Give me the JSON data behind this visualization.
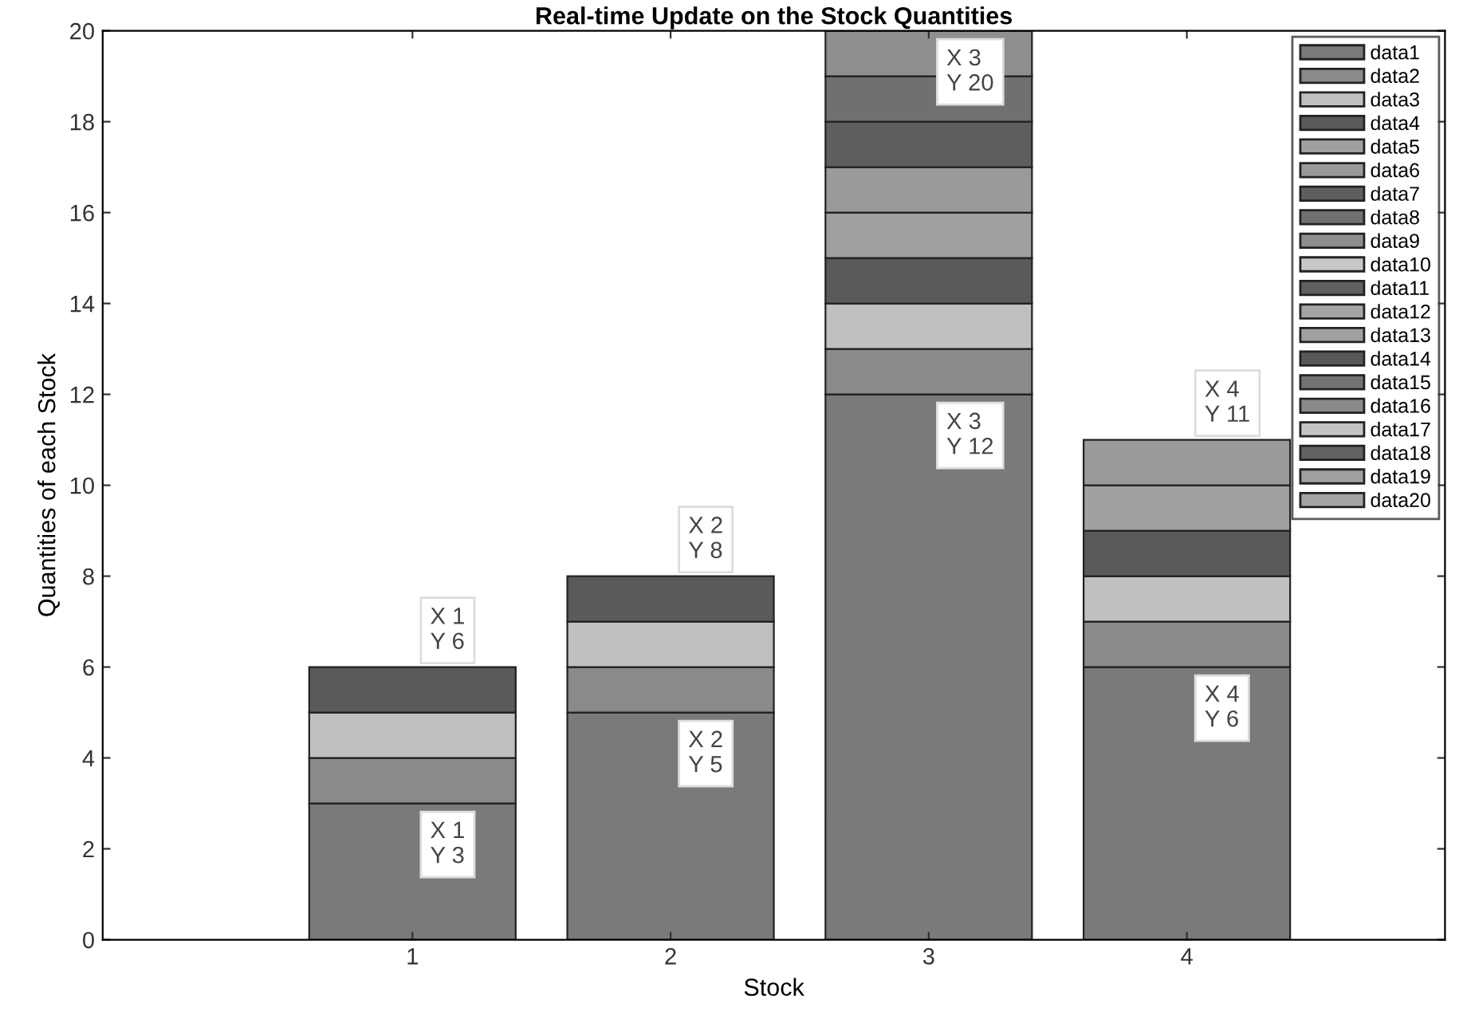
{
  "chart_data": {
    "type": "bar",
    "stacked": true,
    "title": "Real-time Update on the Stock Quantities",
    "xlabel": "Stock",
    "ylabel": "Quantities of each Stock",
    "x": [
      1,
      2,
      3,
      4
    ],
    "xlim": [
      -0.2,
      5
    ],
    "xticks": [
      1,
      2,
      3,
      4
    ],
    "ylim": [
      0,
      20
    ],
    "yticks": [
      0,
      2,
      4,
      6,
      8,
      10,
      12,
      14,
      16,
      18,
      20
    ],
    "grid": false,
    "legend": "top right",
    "series": [
      {
        "name": "data1",
        "color": "#7a7a7a",
        "values": [
          3,
          5,
          12,
          6
        ]
      },
      {
        "name": "data2",
        "color": "#8a8a8a",
        "values": [
          1,
          1,
          1,
          1
        ]
      },
      {
        "name": "data3",
        "color": "#c0c0c0",
        "values": [
          1,
          1,
          1,
          1
        ]
      },
      {
        "name": "data4",
        "color": "#5a5a5a",
        "values": [
          1,
          1,
          1,
          1
        ]
      },
      {
        "name": "data5",
        "color": "#a0a0a0",
        "values": [
          0,
          0,
          1,
          1
        ]
      },
      {
        "name": "data6",
        "color": "#9a9a9a",
        "values": [
          0,
          0,
          1,
          1
        ]
      },
      {
        "name": "data7",
        "color": "#5e5e5e",
        "values": [
          0,
          0,
          1,
          0
        ]
      },
      {
        "name": "data8",
        "color": "#707070",
        "values": [
          0,
          0,
          1,
          0
        ]
      },
      {
        "name": "data9",
        "color": "#8e8e8e",
        "values": [
          0,
          0,
          1,
          0
        ]
      },
      {
        "name": "data10",
        "color": "#c8c8c8",
        "values": [
          0,
          0,
          0,
          0
        ]
      },
      {
        "name": "data11",
        "color": "#606060",
        "values": [
          0,
          0,
          0,
          0
        ]
      },
      {
        "name": "data12",
        "color": "#a4a4a4",
        "values": [
          0,
          0,
          0,
          0
        ]
      },
      {
        "name": "data13",
        "color": "#a0a0a0",
        "values": [
          0,
          0,
          0,
          0
        ]
      },
      {
        "name": "data14",
        "color": "#585858",
        "values": [
          0,
          0,
          0,
          0
        ]
      },
      {
        "name": "data15",
        "color": "#727272",
        "values": [
          0,
          0,
          0,
          0
        ]
      },
      {
        "name": "data16",
        "color": "#8a8a8a",
        "values": [
          0,
          0,
          0,
          0
        ]
      },
      {
        "name": "data17",
        "color": "#c4c4c4",
        "values": [
          0,
          0,
          0,
          0
        ]
      },
      {
        "name": "data18",
        "color": "#626262",
        "values": [
          0,
          0,
          0,
          0
        ]
      },
      {
        "name": "data19",
        "color": "#a0a0a0",
        "values": [
          0,
          0,
          0,
          0
        ]
      },
      {
        "name": "data20",
        "color": "#a4a4a4",
        "values": [
          0,
          0,
          0,
          0
        ]
      }
    ],
    "annotations": [
      {
        "text": "X 1\nY 6",
        "x": 1,
        "y": 6
      },
      {
        "text": "X 1\nY 3",
        "x": 1,
        "y": 3
      },
      {
        "text": "X 2\nY 8",
        "x": 2,
        "y": 8
      },
      {
        "text": "X 2\nY 5",
        "x": 2,
        "y": 5
      },
      {
        "text": "X 3\nY 20",
        "x": 3,
        "y": 20
      },
      {
        "text": "X 3\nY 12",
        "x": 3,
        "y": 12
      },
      {
        "text": "X 4\nY 11",
        "x": 4,
        "y": 11
      },
      {
        "text": "X 4\nY 6",
        "x": 4,
        "y": 6
      }
    ]
  }
}
